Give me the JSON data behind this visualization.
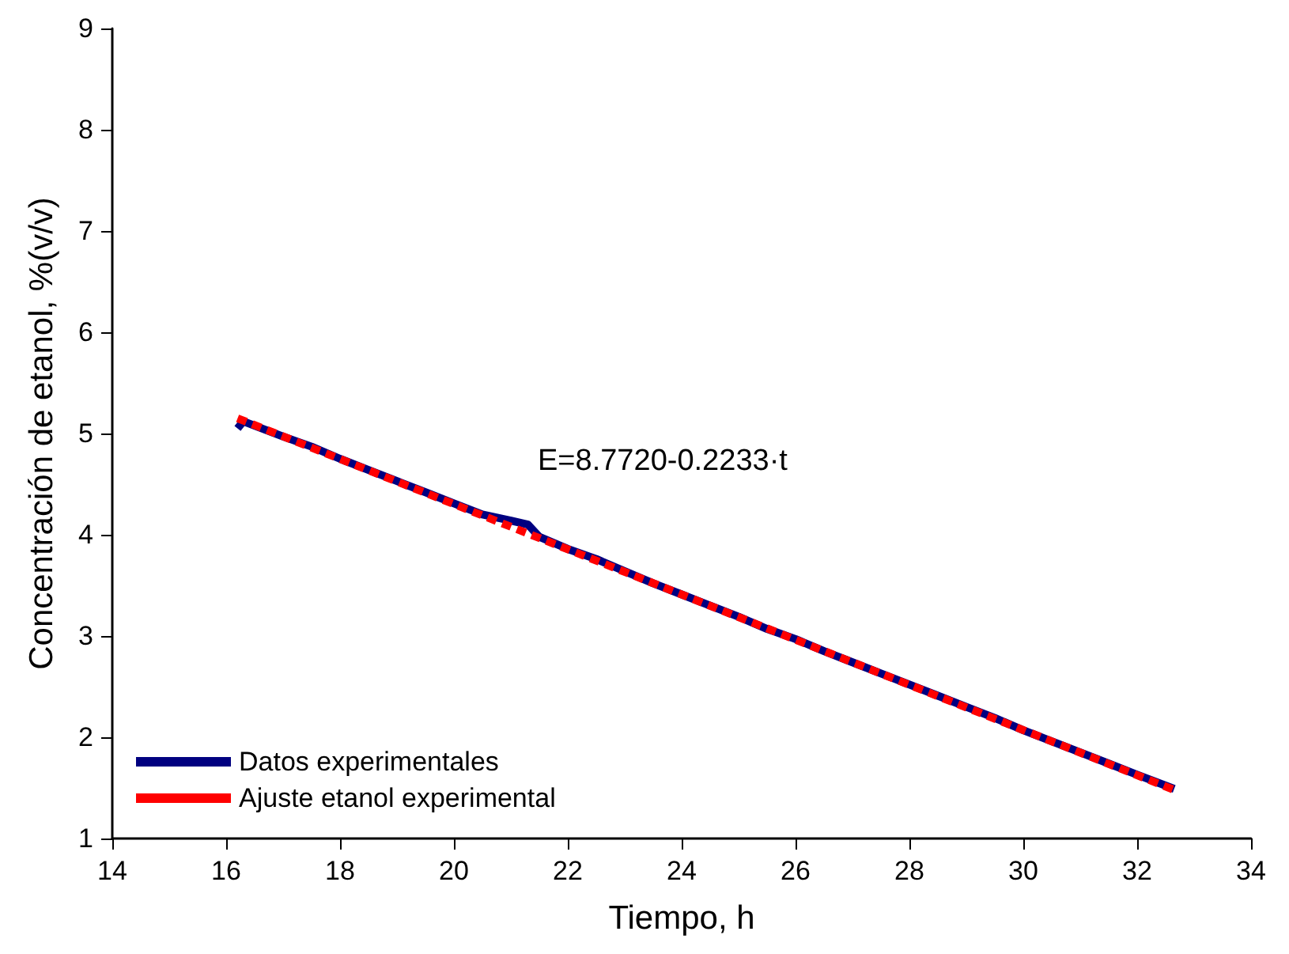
{
  "chart_data": {
    "type": "line",
    "xlabel": "Tiempo, h",
    "ylabel": "Concentración de etanol, %(v/v)",
    "annotations": [
      "E=8.7720-0.2233·t"
    ],
    "series": [
      {
        "name": "Datos experimentales",
        "color": "#000080",
        "line_style": "solid",
        "x": [
          16.2,
          16.3,
          17,
          17.5,
          18,
          18.5,
          19,
          19.5,
          20,
          20.5,
          21,
          21.3,
          21.5,
          22,
          22.5,
          23,
          23.5,
          24,
          24.5,
          25,
          25.5,
          26,
          26.5,
          27,
          27.5,
          28,
          28.5,
          29,
          29.5,
          30,
          30.5,
          31,
          31.5,
          32,
          32.65
        ],
        "values": [
          5.05,
          5.12,
          4.97,
          4.87,
          4.75,
          4.64,
          4.53,
          4.42,
          4.31,
          4.2,
          4.14,
          4.1,
          3.98,
          3.86,
          3.76,
          3.64,
          3.52,
          3.41,
          3.3,
          3.19,
          3.07,
          2.97,
          2.85,
          2.74,
          2.63,
          2.52,
          2.41,
          2.3,
          2.19,
          2.07,
          1.96,
          1.85,
          1.74,
          1.63,
          1.49
        ]
      },
      {
        "name": "Ajuste etanol experimental",
        "color": "#ff0000",
        "line_style": "dashed",
        "x": [
          16.2,
          32.65
        ],
        "values": [
          5.15,
          1.48
        ]
      }
    ],
    "xlim": [
      14,
      34
    ],
    "xticks": [
      14,
      16,
      18,
      20,
      22,
      24,
      26,
      28,
      30,
      32,
      34
    ],
    "ylim": [
      1,
      9
    ],
    "yticks": [
      1,
      2,
      3,
      4,
      5,
      6,
      7,
      8,
      9
    ],
    "grid": false,
    "legend": "bottom left",
    "marker": "none"
  }
}
